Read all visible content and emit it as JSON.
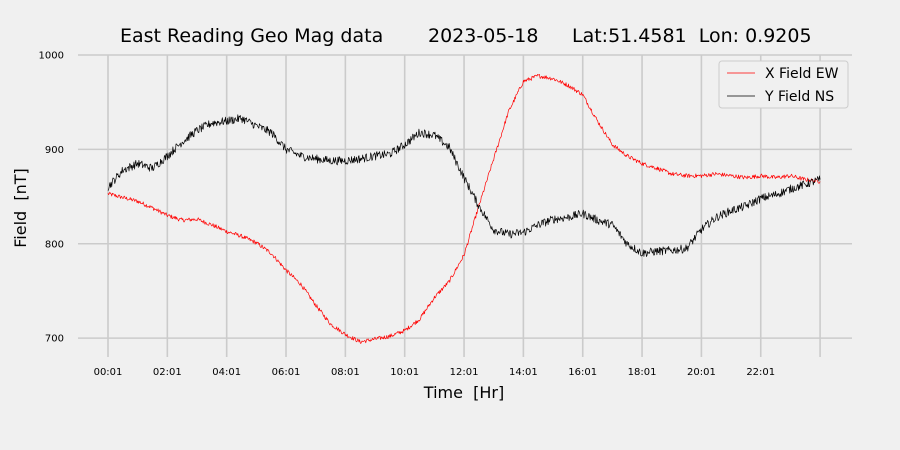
{
  "chart_data": {
    "type": "line",
    "title": "East Reading Geo Mag data",
    "date": "2023-05-18",
    "location": "Lat:51.4581  Lon: 0.9205",
    "xlabel": "Time  [Hr]",
    "ylabel": "Field  [nT]",
    "xticks": [
      "00:01",
      "02:01",
      "04:01",
      "06:01",
      "08:01",
      "10:01",
      "12:01",
      "14:01",
      "16:01",
      "18:01",
      "20:01",
      "22:01"
    ],
    "xlim": [
      0,
      24
    ],
    "ylim": [
      680,
      1000
    ],
    "yticks": [
      700,
      800,
      900,
      1000
    ],
    "grid": true,
    "legend_position": "top-right",
    "series": [
      {
        "name": "X Field EW",
        "color": "#ff0000",
        "x": [
          0.0,
          0.5,
          1.0,
          1.5,
          2.0,
          2.5,
          3.0,
          3.5,
          4.0,
          4.5,
          5.0,
          5.5,
          6.0,
          6.5,
          7.0,
          7.5,
          8.0,
          8.5,
          9.0,
          9.5,
          10.0,
          10.5,
          11.0,
          11.5,
          12.0,
          12.5,
          13.0,
          13.5,
          14.0,
          14.5,
          15.0,
          15.5,
          16.0,
          16.5,
          17.0,
          17.5,
          18.0,
          18.5,
          19.0,
          19.5,
          20.0,
          20.5,
          21.0,
          21.5,
          22.0,
          22.5,
          23.0,
          23.5,
          24.0
        ],
        "values": [
          853,
          849,
          845,
          838,
          830,
          825,
          826,
          820,
          813,
          808,
          801,
          790,
          772,
          757,
          735,
          715,
          704,
          696,
          699,
          702,
          708,
          720,
          743,
          760,
          788,
          840,
          890,
          940,
          972,
          978,
          975,
          968,
          958,
          930,
          905,
          893,
          885,
          880,
          874,
          872,
          872,
          874,
          872,
          870,
          872,
          870,
          872,
          868,
          866
        ]
      },
      {
        "name": "Y Field NS",
        "color": "#000000",
        "x": [
          0.0,
          0.5,
          1.0,
          1.5,
          2.0,
          2.5,
          3.0,
          3.5,
          4.0,
          4.5,
          5.0,
          5.5,
          6.0,
          6.5,
          7.0,
          7.5,
          8.0,
          8.5,
          9.0,
          9.5,
          10.0,
          10.5,
          11.0,
          11.5,
          12.0,
          12.5,
          13.0,
          13.5,
          14.0,
          14.5,
          15.0,
          15.5,
          16.0,
          16.5,
          17.0,
          17.5,
          18.0,
          18.5,
          19.0,
          19.5,
          20.0,
          20.5,
          21.0,
          21.5,
          22.0,
          22.5,
          23.0,
          23.5,
          24.0
        ],
        "values": [
          860,
          878,
          885,
          880,
          893,
          908,
          920,
          928,
          930,
          933,
          925,
          918,
          900,
          893,
          890,
          888,
          888,
          890,
          893,
          895,
          905,
          918,
          915,
          902,
          870,
          840,
          815,
          810,
          812,
          820,
          826,
          828,
          832,
          825,
          820,
          800,
          790,
          792,
          793,
          795,
          815,
          828,
          835,
          840,
          848,
          852,
          858,
          863,
          868
        ]
      }
    ]
  }
}
